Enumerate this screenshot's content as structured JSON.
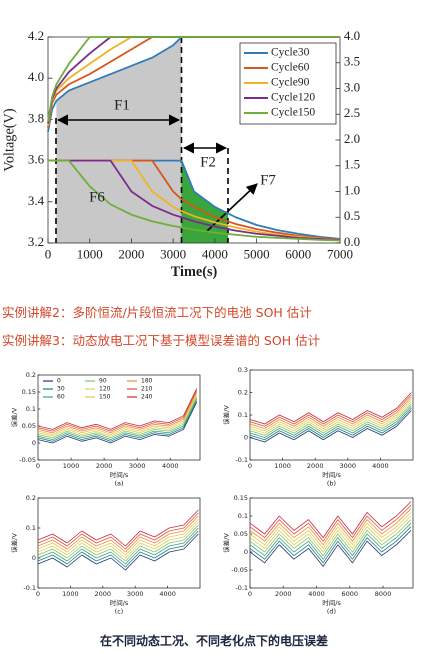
{
  "chart_data": [
    {
      "type": "line",
      "xlabel": "Time(s)",
      "ylabel": "Voltage(V)",
      "x": [
        0,
        100,
        200,
        500,
        1000,
        1500,
        2000,
        2500,
        3000,
        3200,
        3500,
        4000,
        4500,
        5000,
        5500,
        6000,
        6500,
        7000
      ],
      "xlim": [
        0,
        7000
      ],
      "xticks": [
        0,
        1000,
        2000,
        3000,
        4000,
        5000,
        6000,
        7000
      ],
      "ylim": [
        3.2,
        4.2
      ],
      "yticks": [
        3.2,
        3.4,
        3.6,
        3.8,
        {
          "value": 4,
          "label": "4.0"
        },
        4.2
      ],
      "y2lim": [
        0,
        4
      ],
      "y2ticks": [
        {
          "value": 0,
          "label": "0.0"
        },
        0.5,
        {
          "value": 1,
          "label": "1.0"
        },
        1.5,
        {
          "value": 2,
          "label": "2.0"
        },
        2.5,
        {
          "value": 3,
          "label": "3.0"
        },
        3.5,
        {
          "value": 4,
          "label": "4.0"
        }
      ],
      "legend": "upper right",
      "annotations": [
        "F1",
        "F2",
        "F6",
        "F7"
      ],
      "series": [
        {
          "name": "Cycle30",
          "color": "#2f7bbd",
          "values": [
            3.74,
            3.85,
            3.89,
            3.94,
            3.98,
            4.02,
            4.06,
            4.1,
            4.16,
            4.2,
            4.2,
            4.2,
            4.2,
            4.2,
            4.2,
            4.2,
            4.2,
            4.2
          ]
        },
        {
          "name": "Cycle60",
          "color": "#d9541e",
          "values": [
            3.76,
            3.88,
            3.92,
            3.97,
            4.02,
            4.08,
            4.14,
            4.2,
            4.2,
            4.2,
            4.2,
            4.2,
            4.2,
            4.2,
            4.2,
            4.2,
            4.2,
            4.2
          ]
        },
        {
          "name": "Cycle90",
          "color": "#f0b323",
          "values": [
            3.77,
            3.89,
            3.94,
            4.0,
            4.07,
            4.14,
            4.2,
            4.2,
            4.2,
            4.2,
            4.2,
            4.2,
            4.2,
            4.2,
            4.2,
            4.2,
            4.2,
            4.2
          ]
        },
        {
          "name": "Cycle120",
          "color": "#7b2d8f",
          "values": [
            3.78,
            3.9,
            3.95,
            4.03,
            4.12,
            4.2,
            4.2,
            4.2,
            4.2,
            4.2,
            4.2,
            4.2,
            4.2,
            4.2,
            4.2,
            4.2,
            4.2,
            4.2
          ]
        },
        {
          "name": "Cycle150",
          "color": "#6fae3a",
          "values": [
            3.79,
            3.91,
            3.97,
            4.07,
            4.2,
            4.2,
            4.2,
            4.2,
            4.2,
            4.2,
            4.2,
            4.2,
            4.2,
            4.2,
            4.2,
            4.2,
            4.2,
            4.2
          ]
        },
        {
          "axis": "y2",
          "color": "#2f7bbd",
          "values": [
            1.6,
            1.6,
            1.6,
            1.6,
            1.6,
            1.6,
            1.6,
            1.6,
            1.6,
            1.6,
            1.0,
            0.7,
            0.5,
            0.35,
            0.25,
            0.18,
            0.12,
            0.08
          ]
        },
        {
          "axis": "y2",
          "color": "#d9541e",
          "values": [
            1.6,
            1.6,
            1.6,
            1.6,
            1.6,
            1.6,
            1.6,
            1.6,
            1.0,
            0.85,
            0.7,
            0.5,
            0.37,
            0.27,
            0.2,
            0.14,
            0.1,
            0.07
          ]
        },
        {
          "axis": "y2",
          "color": "#f0b323",
          "values": [
            1.6,
            1.6,
            1.6,
            1.6,
            1.6,
            1.6,
            1.6,
            1.0,
            0.7,
            0.62,
            0.52,
            0.4,
            0.3,
            0.22,
            0.16,
            0.12,
            0.09,
            0.06
          ]
        },
        {
          "axis": "y2",
          "color": "#7b2d8f",
          "values": [
            1.6,
            1.6,
            1.6,
            1.6,
            1.6,
            1.6,
            1.0,
            0.72,
            0.55,
            0.5,
            0.42,
            0.32,
            0.24,
            0.18,
            0.14,
            0.1,
            0.08,
            0.06
          ]
        },
        {
          "axis": "y2",
          "color": "#6fae3a",
          "values": [
            1.6,
            1.6,
            1.6,
            1.6,
            1.1,
            0.75,
            0.55,
            0.42,
            0.33,
            0.3,
            0.26,
            0.2,
            0.16,
            0.12,
            0.1,
            0.08,
            0.06,
            0.05
          ]
        }
      ]
    },
    {
      "type": "line",
      "xlabel": "时间/s",
      "ylabel": "误差/V",
      "caption": "(a)",
      "legend": "upper left",
      "x": [
        0,
        440,
        880,
        1320,
        1760,
        2200,
        2640,
        3080,
        3520,
        3960,
        4400,
        4800
      ],
      "xlim": [
        0,
        4900
      ],
      "xticks": [
        0,
        1000,
        2000,
        3000,
        4000
      ],
      "ylim": [
        -0.05,
        0.2
      ],
      "yticks": [
        -0.05,
        0,
        0.05,
        0.1,
        0.15,
        0.2
      ],
      "series": [
        {
          "name": "0",
          "color": "#1f3a6e",
          "values": [
            0.01,
            0,
            0.02,
            0.005,
            0.015,
            0,
            0.02,
            0.01,
            0.025,
            0.02,
            0.04,
            0.12
          ]
        },
        {
          "name": "30",
          "color": "#1f7a8c",
          "values": [
            0.015,
            0.005,
            0.025,
            0.01,
            0.02,
            0.005,
            0.025,
            0.015,
            0.03,
            0.025,
            0.045,
            0.125
          ]
        },
        {
          "name": "60",
          "color": "#3aa57a",
          "values": [
            0.02,
            0.01,
            0.03,
            0.015,
            0.025,
            0.01,
            0.03,
            0.02,
            0.035,
            0.03,
            0.05,
            0.13
          ]
        },
        {
          "name": "90",
          "color": "#8cc265",
          "values": [
            0.025,
            0.015,
            0.035,
            0.02,
            0.03,
            0.015,
            0.035,
            0.025,
            0.04,
            0.035,
            0.055,
            0.135
          ]
        },
        {
          "name": "120",
          "color": "#d4d45a",
          "values": [
            0.03,
            0.02,
            0.04,
            0.025,
            0.035,
            0.02,
            0.04,
            0.03,
            0.045,
            0.04,
            0.06,
            0.14
          ]
        },
        {
          "name": "150",
          "color": "#f2c14e",
          "values": [
            0.035,
            0.025,
            0.045,
            0.03,
            0.04,
            0.025,
            0.045,
            0.035,
            0.05,
            0.045,
            0.065,
            0.145
          ]
        },
        {
          "name": "180",
          "color": "#f08a3c",
          "values": [
            0.04,
            0.03,
            0.05,
            0.035,
            0.045,
            0.03,
            0.05,
            0.04,
            0.055,
            0.05,
            0.07,
            0.15
          ]
        },
        {
          "name": "210",
          "color": "#e0503a",
          "values": [
            0.045,
            0.035,
            0.055,
            0.04,
            0.05,
            0.035,
            0.055,
            0.045,
            0.06,
            0.055,
            0.075,
            0.155
          ]
        },
        {
          "name": "240",
          "color": "#c8283c",
          "values": [
            0.05,
            0.04,
            0.06,
            0.045,
            0.055,
            0.04,
            0.06,
            0.05,
            0.065,
            0.06,
            0.08,
            0.16
          ]
        }
      ]
    },
    {
      "type": "line",
      "xlabel": "时间/s",
      "ylabel": "误差/V",
      "caption": "(b)",
      "x": [
        0,
        450,
        900,
        1350,
        1800,
        2250,
        2700,
        3150,
        3600,
        4050,
        4500,
        4950
      ],
      "xlim": [
        0,
        5000
      ],
      "xticks": [
        0,
        1000,
        2000,
        3000,
        4000
      ],
      "ylim": [
        -0.1,
        0.3
      ],
      "yticks": [
        -0.1,
        0,
        0.1,
        0.2,
        0.3
      ],
      "series": [
        {
          "color": "#1f3a6e",
          "values": [
            0,
            -0.02,
            0.02,
            -0.01,
            0.03,
            -0.01,
            0.03,
            0,
            0.04,
            0.01,
            0.05,
            0.12
          ]
        },
        {
          "color": "#1f7a8c",
          "values": [
            0.01,
            -0.01,
            0.03,
            0,
            0.04,
            0,
            0.04,
            0.01,
            0.05,
            0.02,
            0.06,
            0.13
          ]
        },
        {
          "color": "#3aa57a",
          "values": [
            0.02,
            0,
            0.04,
            0.01,
            0.05,
            0.01,
            0.05,
            0.02,
            0.06,
            0.03,
            0.07,
            0.14
          ]
        },
        {
          "color": "#8cc265",
          "values": [
            0.03,
            0.01,
            0.05,
            0.02,
            0.06,
            0.02,
            0.06,
            0.03,
            0.07,
            0.04,
            0.08,
            0.15
          ]
        },
        {
          "color": "#d4d45a",
          "values": [
            0.04,
            0.02,
            0.06,
            0.03,
            0.07,
            0.03,
            0.07,
            0.04,
            0.08,
            0.05,
            0.09,
            0.16
          ]
        },
        {
          "color": "#f2c14e",
          "values": [
            0.05,
            0.03,
            0.07,
            0.04,
            0.08,
            0.04,
            0.08,
            0.05,
            0.09,
            0.06,
            0.1,
            0.17
          ]
        },
        {
          "color": "#f08a3c",
          "values": [
            0.06,
            0.04,
            0.08,
            0.05,
            0.09,
            0.05,
            0.09,
            0.06,
            0.1,
            0.07,
            0.11,
            0.18
          ]
        },
        {
          "color": "#e0503a",
          "values": [
            0.07,
            0.05,
            0.09,
            0.06,
            0.1,
            0.06,
            0.1,
            0.07,
            0.11,
            0.08,
            0.12,
            0.19
          ]
        },
        {
          "color": "#c8283c",
          "values": [
            0.08,
            0.06,
            0.1,
            0.07,
            0.11,
            0.07,
            0.11,
            0.08,
            0.12,
            0.09,
            0.13,
            0.2
          ]
        }
      ]
    },
    {
      "type": "line",
      "xlabel": "时间/s",
      "ylabel": "误差/V",
      "caption": "(c)",
      "x": [
        0,
        450,
        900,
        1350,
        1800,
        2250,
        2700,
        3150,
        3600,
        4050,
        4500,
        4950
      ],
      "xlim": [
        0,
        5000
      ],
      "xticks": [
        0,
        1000,
        2000,
        3000,
        4000
      ],
      "ylim": [
        -0.1,
        0.2
      ],
      "yticks": [
        -0.1,
        0,
        0.1,
        0.2
      ],
      "series": [
        {
          "color": "#1f3a6e",
          "values": [
            -0.02,
            0,
            -0.03,
            0.01,
            -0.02,
            0,
            -0.04,
            0.01,
            -0.01,
            0.02,
            0.03,
            0.08
          ]
        },
        {
          "color": "#1f7a8c",
          "values": [
            -0.01,
            0.01,
            -0.02,
            0.02,
            -0.01,
            0.01,
            -0.03,
            0.02,
            0,
            0.03,
            0.04,
            0.09
          ]
        },
        {
          "color": "#3aa57a",
          "values": [
            0,
            0.02,
            -0.01,
            0.03,
            0,
            0.02,
            -0.02,
            0.03,
            0.01,
            0.04,
            0.05,
            0.1
          ]
        },
        {
          "color": "#8cc265",
          "values": [
            0.01,
            0.03,
            0,
            0.04,
            0.01,
            0.03,
            -0.01,
            0.04,
            0.02,
            0.05,
            0.06,
            0.11
          ]
        },
        {
          "color": "#d4d45a",
          "values": [
            0.02,
            0.04,
            0.01,
            0.05,
            0.02,
            0.04,
            0,
            0.05,
            0.03,
            0.06,
            0.07,
            0.12
          ]
        },
        {
          "color": "#f2c14e",
          "values": [
            0.03,
            0.05,
            0.02,
            0.06,
            0.03,
            0.05,
            0.01,
            0.06,
            0.04,
            0.07,
            0.08,
            0.13
          ]
        },
        {
          "color": "#f08a3c",
          "values": [
            0.04,
            0.06,
            0.03,
            0.07,
            0.04,
            0.06,
            0.02,
            0.07,
            0.05,
            0.08,
            0.09,
            0.14
          ]
        },
        {
          "color": "#e0503a",
          "values": [
            0.05,
            0.07,
            0.04,
            0.08,
            0.05,
            0.07,
            0.03,
            0.08,
            0.06,
            0.09,
            0.1,
            0.15
          ]
        },
        {
          "color": "#c8283c",
          "values": [
            0.06,
            0.08,
            0.05,
            0.09,
            0.06,
            0.08,
            0.04,
            0.09,
            0.07,
            0.1,
            0.11,
            0.16
          ]
        }
      ]
    },
    {
      "type": "line",
      "xlabel": "时间/s",
      "ylabel": "误差/V",
      "caption": "(d)",
      "x": [
        0,
        880,
        1760,
        2640,
        3520,
        4400,
        5280,
        6160,
        7040,
        7920,
        8800,
        9680
      ],
      "xlim": [
        0,
        9800
      ],
      "xticks": [
        0,
        2000,
        4000,
        6000,
        8000
      ],
      "ylim": [
        -0.1,
        0.15
      ],
      "yticks": [
        -0.1,
        -0.05,
        0,
        0.05,
        0.1,
        0.15
      ],
      "series": [
        {
          "color": "#1f3a6e",
          "values": [
            0,
            -0.03,
            0.02,
            -0.02,
            0.01,
            -0.04,
            0.02,
            -0.03,
            0.03,
            -0.01,
            0.02,
            0.06
          ]
        },
        {
          "color": "#1f7a8c",
          "values": [
            0.01,
            -0.02,
            0.03,
            -0.01,
            0.02,
            -0.03,
            0.03,
            -0.02,
            0.04,
            0,
            0.03,
            0.07
          ]
        },
        {
          "color": "#3aa57a",
          "values": [
            0.02,
            -0.01,
            0.04,
            0,
            0.03,
            -0.02,
            0.04,
            -0.01,
            0.05,
            0.01,
            0.04,
            0.08
          ]
        },
        {
          "color": "#8cc265",
          "values": [
            0.03,
            0,
            0.05,
            0.01,
            0.04,
            -0.01,
            0.05,
            0,
            0.06,
            0.02,
            0.05,
            0.09
          ]
        },
        {
          "color": "#d4d45a",
          "values": [
            0.04,
            0.01,
            0.06,
            0.02,
            0.05,
            0,
            0.06,
            0.01,
            0.07,
            0.03,
            0.06,
            0.1
          ]
        },
        {
          "color": "#f2c14e",
          "values": [
            0.05,
            0.02,
            0.07,
            0.03,
            0.06,
            0.01,
            0.07,
            0.02,
            0.08,
            0.04,
            0.07,
            0.11
          ]
        },
        {
          "color": "#f08a3c",
          "values": [
            0.06,
            0.03,
            0.08,
            0.04,
            0.07,
            0.02,
            0.08,
            0.03,
            0.09,
            0.05,
            0.08,
            0.12
          ]
        },
        {
          "color": "#e0503a",
          "values": [
            0.07,
            0.04,
            0.09,
            0.05,
            0.08,
            0.03,
            0.09,
            0.04,
            0.1,
            0.06,
            0.09,
            0.13
          ]
        },
        {
          "color": "#c8283c",
          "values": [
            0.08,
            0.05,
            0.1,
            0.06,
            0.09,
            0.04,
            0.1,
            0.05,
            0.11,
            0.07,
            0.1,
            0.14
          ]
        }
      ]
    }
  ],
  "texts": [
    "实例讲解2：多阶恒流/片段恒流工况下的电池 SOH 估计",
    "实例讲解3：动态放电工况下基于模型误差谱的 SOH 估计"
  ],
  "caption": "在不同动态工况、不同老化点下的电压误差"
}
